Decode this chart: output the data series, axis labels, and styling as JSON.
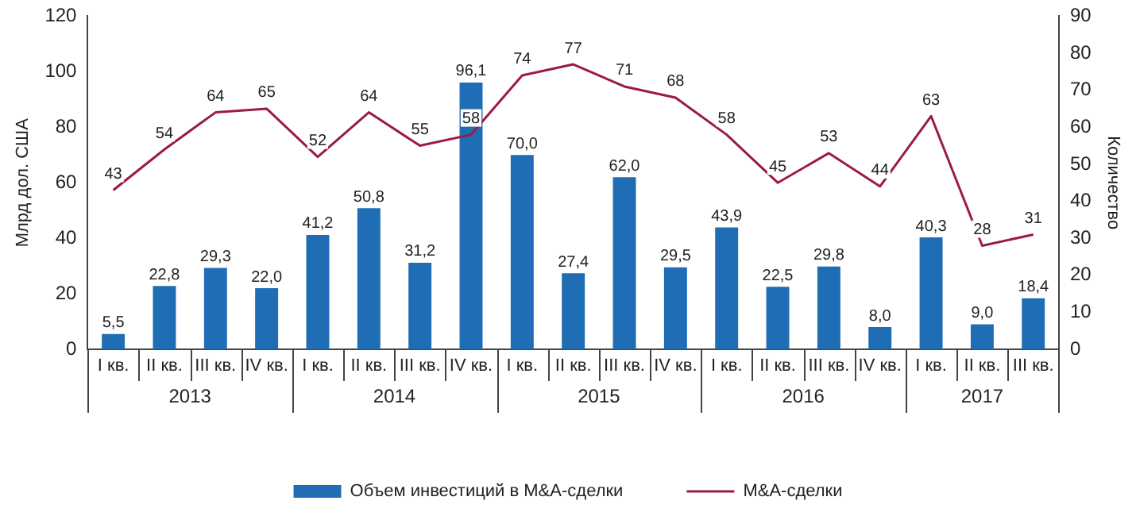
{
  "chart_data": {
    "type": "bar",
    "xlabel": null,
    "ylabel": "Млрд дол. США",
    "y2label": "Количество",
    "categories": [
      "I кв.",
      "II кв.",
      "III кв.",
      "IV кв.",
      "I кв.",
      "II кв.",
      "III кв.",
      "IV кв.",
      "I кв.",
      "II кв.",
      "III кв.",
      "IV кв.",
      "I кв.",
      "II кв.",
      "III кв.",
      "IV кв.",
      "I кв.",
      "II кв.",
      "III кв."
    ],
    "annotations": [
      "2013",
      "2014",
      "2015",
      "2016",
      "2017"
    ],
    "series": [
      {
        "name": "Объем инвестиций в M&A-сделки",
        "color": "#1f6db5",
        "values": [
          5.5,
          22.8,
          29.3,
          22.0,
          41.2,
          50.8,
          31.2,
          96.1,
          70.0,
          27.4,
          62.0,
          29.5,
          43.9,
          22.5,
          29.8,
          8.0,
          40.3,
          9.0,
          18.4
        ],
        "value_labels": [
          "5,5",
          "22,8",
          "29,3",
          "22,0",
          "41,2",
          "50,8",
          "31,2",
          "96,1",
          "70,0",
          "27,4",
          "62,0",
          "29,5",
          "43,9",
          "22,5",
          "29,8",
          "8,0",
          "40,3",
          "9,0",
          "18,4"
        ]
      },
      {
        "type": "line",
        "name": "M&A-сделки",
        "color": "#9b1b45",
        "axis": "y2",
        "values": [
          43,
          54,
          64,
          65,
          52,
          64,
          55,
          58,
          74,
          77,
          71,
          68,
          58,
          45,
          53,
          44,
          63,
          28,
          31
        ],
        "value_labels": [
          "43",
          "54",
          "64",
          "65",
          "52",
          "64",
          "55",
          "58",
          "74",
          "77",
          "71",
          "68",
          "58",
          "45",
          "53",
          "44",
          "63",
          "28",
          "31"
        ]
      }
    ],
    "ylim": [
      0,
      120
    ],
    "yticks": [
      0,
      20,
      40,
      60,
      80,
      100,
      120
    ],
    "y2lim": [
      0,
      90
    ],
    "y2ticks": [
      0,
      10,
      20,
      30,
      40,
      50,
      60,
      70,
      80,
      90
    ],
    "grid": false,
    "legend": "bottom",
    "marker": "none",
    "line_style": "solid"
  }
}
